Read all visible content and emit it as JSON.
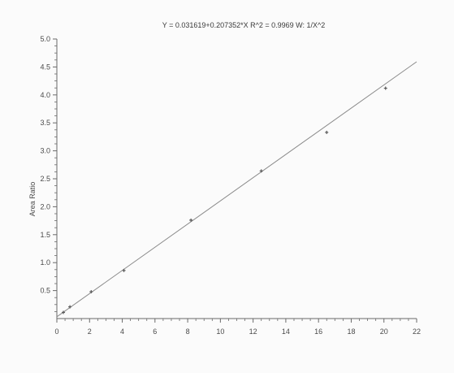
{
  "chart_data": {
    "type": "scatter",
    "title": "Y = 0.031619+0.207352*X   R^2 = 0.9969   W: 1/X^2",
    "xlabel": "",
    "ylabel": "Area Ratio",
    "xlim": [
      0,
      22
    ],
    "ylim": [
      0,
      5.0
    ],
    "x_ticks": [
      0,
      2,
      4,
      6,
      8,
      10,
      12,
      14,
      16,
      18,
      20,
      22
    ],
    "y_ticks": [
      0.5,
      1.0,
      1.5,
      2.0,
      2.5,
      3.0,
      3.5,
      4.0,
      4.5,
      5.0
    ],
    "x_tick_labels": [
      "0",
      "2",
      "4",
      "6",
      "8",
      "10",
      "12",
      "14",
      "16",
      "18",
      "20",
      "22"
    ],
    "y_tick_labels": [
      "0.5",
      "1.0",
      "1.5",
      "2.0",
      "2.5",
      "3.0",
      "3.5",
      "4.0",
      "4.5",
      "5.0"
    ],
    "grid": false,
    "points": [
      {
        "x": 0.4,
        "y": 0.11
      },
      {
        "x": 0.8,
        "y": 0.21
      },
      {
        "x": 2.1,
        "y": 0.48
      },
      {
        "x": 4.1,
        "y": 0.86
      },
      {
        "x": 8.2,
        "y": 1.76
      },
      {
        "x": 12.5,
        "y": 2.64
      },
      {
        "x": 16.5,
        "y": 3.33
      },
      {
        "x": 20.1,
        "y": 4.12
      }
    ],
    "fit_line": {
      "intercept": 0.031619,
      "slope": 0.207352,
      "x_range": [
        0,
        22
      ]
    }
  },
  "colors": {
    "axis": "#6a6a6a",
    "line": "#8a8a8a",
    "marker": "#5a5a5a",
    "text": "#4a4a4a"
  }
}
